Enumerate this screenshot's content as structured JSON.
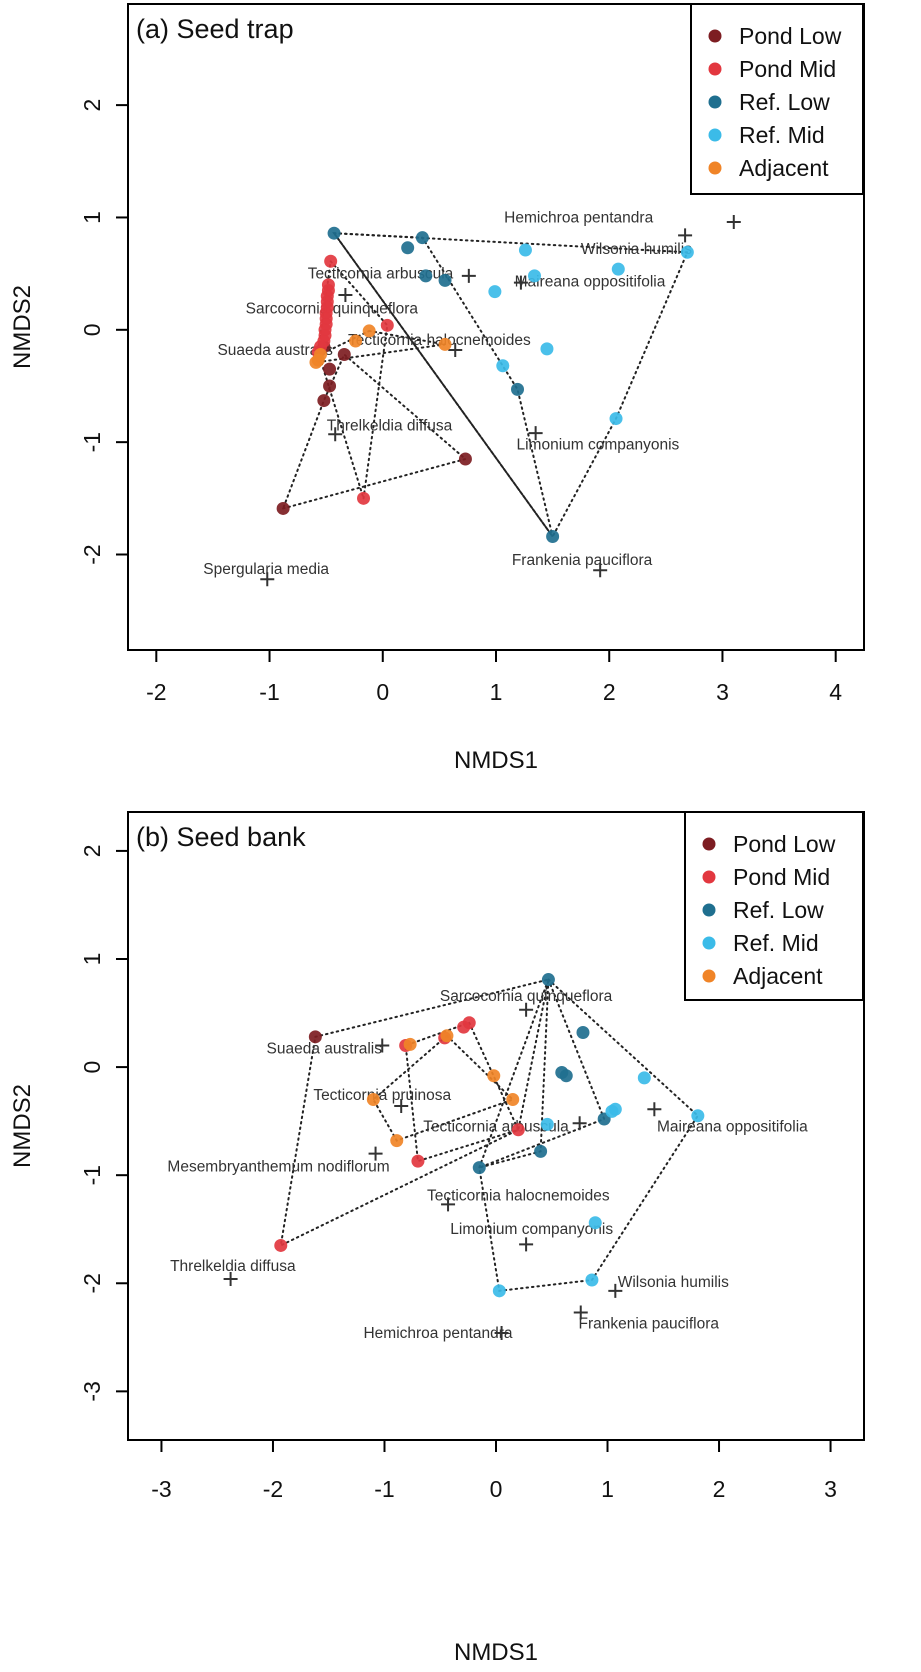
{
  "colors": {
    "Pond Low": "#7d1d22",
    "Pond Mid": "#e2373f",
    "Ref. Low": "#1f6f8f",
    "Ref. Mid": "#3bbbe8",
    "Adjacent": "#f08427",
    "hull": "#222222",
    "cross": "#333333",
    "species_text": "#333333"
  },
  "chart_data": [
    {
      "type": "scatter",
      "title": "(a) Seed trap",
      "xlabel": "NMDS1",
      "ylabel": "NMDS2",
      "xlim": [
        -2.25,
        4.25
      ],
      "ylim": [
        -2.85,
        2.9
      ],
      "xticks": [
        -2,
        -1,
        0,
        1,
        2,
        3,
        4
      ],
      "yticks": [
        -2,
        -1,
        0,
        1,
        2
      ],
      "legend_position": "top-right",
      "legend": [
        "Pond Low",
        "Pond Mid",
        "Ref. Low",
        "Ref. Mid",
        "Adjacent"
      ],
      "series": [
        {
          "name": "Pond Low",
          "points": [
            [
              -0.88,
              -1.59
            ],
            [
              0.73,
              -1.15
            ],
            [
              -0.52,
              -0.63
            ],
            [
              -0.47,
              -0.5
            ],
            [
              -0.47,
              -0.35
            ],
            [
              -0.34,
              -0.22
            ],
            [
              -0.52,
              -0.15
            ]
          ]
        },
        {
          "name": "Pond Mid",
          "points": [
            [
              -0.17,
              -1.5
            ],
            [
              0.04,
              0.04
            ],
            [
              -0.46,
              0.61
            ],
            [
              -0.48,
              0.4
            ],
            [
              -0.48,
              0.35
            ],
            [
              -0.49,
              0.3
            ],
            [
              -0.49,
              0.25
            ],
            [
              -0.49,
              0.2
            ],
            [
              -0.5,
              0.15
            ],
            [
              -0.5,
              0.1
            ],
            [
              -0.5,
              0.05
            ],
            [
              -0.51,
              0.0
            ],
            [
              -0.51,
              -0.05
            ],
            [
              -0.52,
              -0.1
            ],
            [
              -0.55,
              -0.15
            ],
            [
              -0.57,
              -0.2
            ]
          ]
        },
        {
          "name": "Ref. Low",
          "points": [
            [
              -0.43,
              0.86
            ],
            [
              0.35,
              0.82
            ],
            [
              0.22,
              0.73
            ],
            [
              0.38,
              0.48
            ],
            [
              0.55,
              0.44
            ],
            [
              1.19,
              -0.53
            ],
            [
              1.5,
              -1.84
            ]
          ]
        },
        {
          "name": "Ref. Mid",
          "points": [
            [
              1.26,
              0.71
            ],
            [
              2.69,
              0.69
            ],
            [
              2.08,
              0.54
            ],
            [
              1.34,
              0.48
            ],
            [
              0.99,
              0.34
            ],
            [
              1.06,
              -0.32
            ],
            [
              1.45,
              -0.17
            ],
            [
              2.06,
              -0.79
            ]
          ]
        },
        {
          "name": "Adjacent",
          "points": [
            [
              -0.12,
              -0.01
            ],
            [
              -0.24,
              -0.1
            ],
            [
              0.55,
              -0.13
            ],
            [
              -0.55,
              -0.22
            ],
            [
              -0.57,
              -0.27
            ],
            [
              -0.59,
              -0.29
            ]
          ]
        }
      ],
      "hulls": [
        {
          "name": "Pond Low",
          "points": [
            [
              -0.88,
              -1.59
            ],
            [
              0.73,
              -1.15
            ],
            [
              -0.34,
              -0.22
            ],
            [
              -0.52,
              -0.63
            ]
          ]
        },
        {
          "name": "Pond Mid",
          "points": [
            [
              -0.17,
              -1.5
            ],
            [
              0.04,
              0.04
            ],
            [
              -0.46,
              0.61
            ],
            [
              -0.57,
              -0.2
            ]
          ]
        },
        {
          "name": "Ref. Low",
          "points": [
            [
              -0.43,
              0.86
            ],
            [
              0.35,
              0.82
            ],
            [
              1.19,
              -0.53
            ],
            [
              1.5,
              -1.84
            ]
          ]
        },
        {
          "name": "Ref. Mid",
          "points": [
            [
              -0.43,
              0.86
            ],
            [
              2.69,
              0.69
            ],
            [
              2.06,
              -0.79
            ],
            [
              1.5,
              -1.84
            ]
          ]
        },
        {
          "name": "Adjacent",
          "points": [
            [
              -0.12,
              -0.01
            ],
            [
              0.55,
              -0.13
            ],
            [
              -0.59,
              -0.29
            ],
            [
              -0.55,
              -0.22
            ]
          ]
        }
      ],
      "species": [
        {
          "name": "Hemichroa pentandra",
          "point": [
            3.1,
            0.96
          ],
          "label_at": [
            1.73,
            1.0
          ],
          "anchor": "middle"
        },
        {
          "name": "Wilsonia humilis",
          "point": [
            2.67,
            0.84
          ],
          "label_at": [
            2.24,
            0.72
          ],
          "anchor": "middle"
        },
        {
          "name": "Tecticornia arbuscula",
          "point": [
            0.76,
            0.48
          ],
          "label_at": [
            -0.02,
            0.5
          ],
          "anchor": "middle"
        },
        {
          "name": "Maireana oppositifolia",
          "point": [
            1.22,
            0.42
          ],
          "label_at": [
            1.83,
            0.43
          ],
          "anchor": "middle"
        },
        {
          "name": "Sarcocornia quinqueflora",
          "point": [
            -0.33,
            0.31
          ],
          "label_at": [
            -0.45,
            0.19
          ],
          "anchor": "middle"
        },
        {
          "name": "Tecticornia halocnemoides",
          "point": [
            0.64,
            -0.18
          ],
          "label_at": [
            0.5,
            -0.09
          ],
          "anchor": "middle"
        },
        {
          "name": "Suaeda australis",
          "point": [
            -0.52,
            -0.16
          ],
          "label_at": [
            -0.95,
            -0.18
          ],
          "anchor": "middle"
        },
        {
          "name": "Threlkeldia diffusa",
          "point": [
            -0.42,
            -0.93
          ],
          "label_at": [
            0.06,
            -0.85
          ],
          "anchor": "middle"
        },
        {
          "name": "Limonium companyonis",
          "point": [
            1.35,
            -0.92
          ],
          "label_at": [
            1.9,
            -1.02
          ],
          "anchor": "middle"
        },
        {
          "name": "Spergularia media",
          "point": [
            -1.02,
            -2.22
          ],
          "label_at": [
            -1.03,
            -2.13
          ],
          "anchor": "middle"
        },
        {
          "name": "Frankenia pauciflora",
          "point": [
            1.92,
            -2.14
          ],
          "label_at": [
            1.76,
            -2.05
          ],
          "anchor": "middle"
        }
      ]
    },
    {
      "type": "scatter",
      "title": "(b) Seed bank",
      "xlabel": "NMDS1",
      "ylabel": "NMDS2",
      "xlim": [
        -3.3,
        3.3
      ],
      "ylim": [
        -3.45,
        2.36
      ],
      "xticks": [
        -3,
        -2,
        -1,
        0,
        1,
        2,
        3
      ],
      "yticks": [
        -3,
        -2,
        -1,
        0,
        1,
        2
      ],
      "legend_position": "top-right",
      "legend": [
        "Pond Low",
        "Pond Mid",
        "Ref. Low",
        "Ref. Mid",
        "Adjacent"
      ],
      "series": [
        {
          "name": "Pond Low",
          "points": [
            [
              -1.62,
              0.28
            ]
          ]
        },
        {
          "name": "Pond Mid",
          "points": [
            [
              -1.93,
              -1.65
            ],
            [
              -0.24,
              0.41
            ],
            [
              -0.29,
              0.37
            ],
            [
              -0.46,
              0.27
            ],
            [
              -0.7,
              -0.87
            ],
            [
              0.2,
              -0.58
            ],
            [
              -0.81,
              0.2
            ]
          ]
        },
        {
          "name": "Ref. Low",
          "points": [
            [
              0.47,
              0.81
            ],
            [
              0.78,
              0.32
            ],
            [
              0.59,
              -0.05
            ],
            [
              0.63,
              -0.08
            ],
            [
              0.97,
              -0.48
            ],
            [
              0.4,
              -0.78
            ],
            [
              -0.15,
              -0.93
            ]
          ]
        },
        {
          "name": "Ref. Mid",
          "points": [
            [
              1.33,
              -0.1
            ],
            [
              1.04,
              -0.41
            ],
            [
              1.07,
              -0.39
            ],
            [
              1.81,
              -0.45
            ],
            [
              0.46,
              -0.53
            ],
            [
              0.89,
              -1.44
            ],
            [
              0.86,
              -1.97
            ],
            [
              0.03,
              -2.07
            ]
          ]
        },
        {
          "name": "Adjacent",
          "points": [
            [
              -0.02,
              -0.08
            ],
            [
              0.15,
              -0.3
            ],
            [
              -1.1,
              -0.3
            ],
            [
              -0.89,
              -0.68
            ],
            [
              -0.77,
              0.21
            ],
            [
              -0.44,
              0.29
            ]
          ]
        }
      ],
      "hulls": [
        {
          "name": "Pond Low",
          "points": [
            [
              -1.62,
              0.28
            ],
            [
              0.47,
              0.81
            ],
            [
              0.2,
              -0.58
            ],
            [
              -1.93,
              -1.65
            ]
          ]
        },
        {
          "name": "Pond Mid",
          "points": [
            [
              -0.24,
              0.41
            ],
            [
              0.2,
              -0.58
            ],
            [
              -0.7,
              -0.87
            ],
            [
              -0.81,
              0.2
            ]
          ]
        },
        {
          "name": "Ref. Low",
          "points": [
            [
              0.47,
              0.81
            ],
            [
              0.97,
              -0.48
            ],
            [
              -0.15,
              -0.93
            ],
            [
              0.4,
              -0.78
            ]
          ]
        },
        {
          "name": "Ref. Mid",
          "points": [
            [
              0.47,
              0.81
            ],
            [
              1.81,
              -0.45
            ],
            [
              0.86,
              -1.97
            ],
            [
              0.03,
              -2.07
            ],
            [
              -0.15,
              -0.93
            ]
          ]
        },
        {
          "name": "Adjacent",
          "points": [
            [
              -0.44,
              0.29
            ],
            [
              0.15,
              -0.3
            ],
            [
              -0.89,
              -0.68
            ],
            [
              -1.1,
              -0.3
            ]
          ]
        }
      ],
      "species": [
        {
          "name": "Sarcocornia quinqueflora",
          "point": [
            0.27,
            0.53
          ],
          "label_at": [
            0.27,
            0.66
          ],
          "anchor": "middle"
        },
        {
          "name": "Suaeda australis",
          "point": [
            -1.02,
            0.2
          ],
          "label_at": [
            -1.54,
            0.17
          ],
          "anchor": "middle"
        },
        {
          "name": "Tecticornia pruinosa",
          "point": [
            -0.85,
            -0.36
          ],
          "label_at": [
            -1.02,
            -0.26
          ],
          "anchor": "middle"
        },
        {
          "name": "Tecticornia arbuscula",
          "point": [
            0.75,
            -0.52
          ],
          "label_at": [
            0.0,
            -0.55
          ],
          "anchor": "middle"
        },
        {
          "name": "Maireana oppositifolia",
          "point": [
            1.42,
            -0.39
          ],
          "label_at": [
            2.12,
            -0.55
          ],
          "anchor": "middle"
        },
        {
          "name": "Mesembryanthemum nodiflorum",
          "point": [
            -1.08,
            -0.8
          ],
          "label_at": [
            -1.95,
            -0.92
          ],
          "anchor": "middle"
        },
        {
          "name": "Tecticornia halocnemoides",
          "point": [
            -0.43,
            -1.27
          ],
          "label_at": [
            0.2,
            -1.19
          ],
          "anchor": "middle"
        },
        {
          "name": "Limonium companyonis",
          "point": [
            0.27,
            -1.64
          ],
          "label_at": [
            0.32,
            -1.5
          ],
          "anchor": "middle"
        },
        {
          "name": "Threlkeldia diffusa",
          "point": [
            -2.38,
            -1.96
          ],
          "label_at": [
            -2.36,
            -1.84
          ],
          "anchor": "middle"
        },
        {
          "name": "Wilsonia humilis",
          "point": [
            1.07,
            -2.07
          ],
          "label_at": [
            1.59,
            -1.99
          ],
          "anchor": "middle"
        },
        {
          "name": "Frankenia pauciflora",
          "point": [
            0.76,
            -2.27
          ],
          "label_at": [
            1.37,
            -2.37
          ],
          "anchor": "middle"
        },
        {
          "name": "Hemichroa pentandra",
          "point": [
            0.05,
            -2.46
          ],
          "label_at": [
            -0.52,
            -2.46
          ],
          "anchor": "middle"
        }
      ]
    }
  ]
}
